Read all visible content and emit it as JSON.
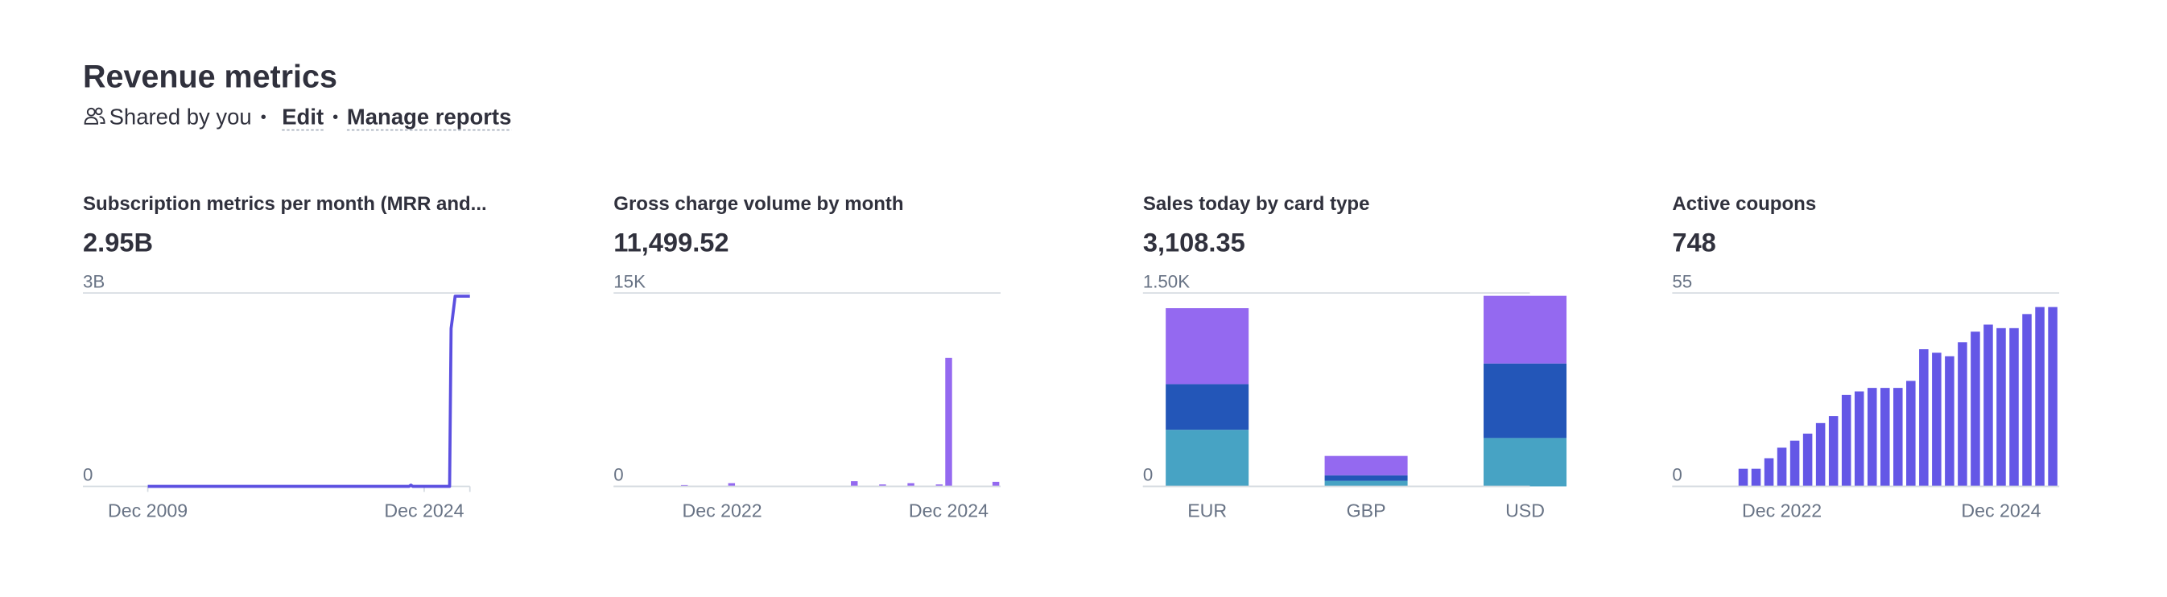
{
  "header": {
    "title": "Revenue metrics",
    "shared": "Shared by you",
    "edit": "Edit",
    "manage": "Manage reports"
  },
  "chart_data": [
    {
      "type": "line",
      "title": "Subscription metrics per month (MRR and...",
      "headline": "2.95B",
      "color": "#5b4fe0",
      "x": [
        2009.92,
        2024.1,
        2024.2,
        2024.3,
        2026.3,
        2026.38,
        2026.45,
        2026.6,
        2027.4
      ],
      "values": [
        0,
        0,
        0.02,
        0,
        0,
        2.45,
        2.6,
        2.95,
        2.95
      ],
      "xlim": [
        2006.4,
        2027.4
      ],
      "xticks": [
        {
          "value": 2009.92,
          "label": "Dec 2009"
        },
        {
          "value": 2024.92,
          "label": "Dec 2024"
        }
      ],
      "ylim": [
        0,
        3
      ],
      "yticks": [
        0,
        {
          "value": 3,
          "label": "3B"
        }
      ],
      "grid": true
    },
    {
      "type": "bar",
      "title": "Gross charge volume by month",
      "headline": "11,499.52",
      "color": "#9469f0",
      "categories": [
        null,
        null,
        null,
        null,
        null,
        null,
        null,
        null,
        null,
        null,
        null,
        "Dec 2022",
        null,
        null,
        null,
        null,
        null,
        null,
        null,
        null,
        null,
        null,
        null,
        null,
        null,
        null,
        null,
        null,
        null,
        null,
        null,
        null,
        null,
        null,
        null,
        "Dec 2024",
        null,
        null,
        null,
        null,
        null
      ],
      "values": [
        0,
        0,
        0,
        0,
        0,
        0,
        0,
        100,
        0,
        0,
        0,
        0,
        250,
        0,
        0,
        0,
        0,
        0,
        0,
        0,
        0,
        0,
        0,
        0,
        0,
        400,
        0,
        0,
        150,
        0,
        0,
        250,
        0,
        0,
        150,
        9964,
        0,
        0,
        0,
        0,
        350
      ],
      "ylim": [
        0,
        15000
      ],
      "yticks": [
        0,
        {
          "value": 15000,
          "label": "15K"
        }
      ],
      "grid": true
    },
    {
      "type": "bar",
      "stacked": true,
      "title": "Sales today by card type",
      "headline": "3,108.35",
      "categories": [
        "EUR",
        "GBP",
        "USD"
      ],
      "series": [
        {
          "color": "#47a3c4",
          "values": [
            439,
            43,
            375
          ]
        },
        {
          "color": "#2356b8",
          "values": [
            354,
            43,
            578
          ]
        },
        {
          "color": "#9469f0",
          "values": [
            589,
            150,
            525
          ]
        }
      ],
      "ylim": [
        0,
        1500
      ],
      "yticks": [
        0,
        {
          "value": 1500,
          "label": "1.50K"
        }
      ],
      "grid": true
    },
    {
      "type": "bar",
      "title": "Active coupons",
      "headline": "748",
      "color": "#6457e6",
      "categories": [
        null,
        null,
        null,
        null,
        null,
        null,
        null,
        null,
        "Dec 2022",
        null,
        null,
        null,
        null,
        null,
        null,
        null,
        null,
        null,
        null,
        null,
        null,
        null,
        null,
        null,
        null,
        "Dec 2024",
        null,
        null,
        null,
        null
      ],
      "values": [
        0,
        0,
        0,
        0,
        0,
        5,
        5,
        8,
        11,
        13,
        15,
        18,
        20,
        26,
        27,
        28,
        28,
        28,
        30,
        39,
        38,
        37,
        41,
        44,
        46,
        45,
        45,
        49,
        51,
        51
      ],
      "ylim": [
        0,
        55
      ],
      "yticks": [
        0,
        55
      ],
      "grid": true
    }
  ]
}
